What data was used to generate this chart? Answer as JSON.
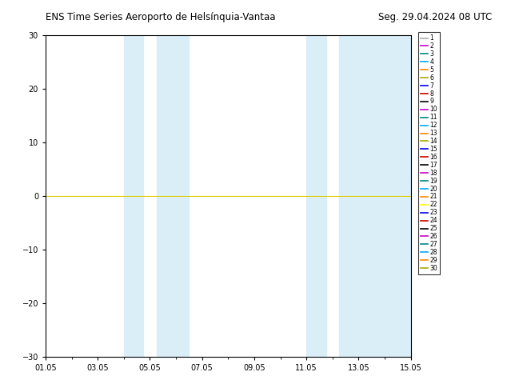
{
  "title_left": "ENS Time Series Aeroporto de Helsínquia-Vantaa",
  "title_right": "Seg. 29.04.2024 08 UTC",
  "xlim": [
    0,
    14
  ],
  "ylim": [
    -30,
    30
  ],
  "yticks": [
    -30,
    -20,
    -10,
    0,
    10,
    20,
    30
  ],
  "xtick_labels": [
    "01.05",
    "03.05",
    "05.05",
    "07.05",
    "09.05",
    "11.05",
    "13.05",
    "15.05"
  ],
  "xtick_positions": [
    0,
    2,
    4,
    6,
    8,
    10,
    12,
    14
  ],
  "shaded_regions": [
    [
      3.0,
      3.75
    ],
    [
      4.25,
      5.5
    ],
    [
      10.0,
      10.75
    ],
    [
      11.25,
      14.0
    ]
  ],
  "shaded_color": "#daeef8",
  "hline_y": 0,
  "hline_color": "#ddcc00",
  "background_color": "#ffffff",
  "plot_bg_color": "#ffffff",
  "legend_labels": [
    "1",
    "2",
    "3",
    "4",
    "5",
    "6",
    "7",
    "8",
    "9",
    "10",
    "11",
    "12",
    "13",
    "14",
    "15",
    "16",
    "17",
    "18",
    "19",
    "20",
    "21",
    "22",
    "23",
    "24",
    "25",
    "26",
    "27",
    "28",
    "29",
    "30"
  ],
  "legend_colors": [
    "#aaaaaa",
    "#cc00cc",
    "#008888",
    "#00aaff",
    "#ff8800",
    "#aaaa00",
    "#0000ff",
    "#cc0000",
    "#000000",
    "#cc00cc",
    "#008888",
    "#00aaff",
    "#ff8800",
    "#aaaa00",
    "#0000ff",
    "#cc0000",
    "#000000",
    "#cc00cc",
    "#008888",
    "#00aaff",
    "#ff8800",
    "#ffff00",
    "#0000ff",
    "#cc0000",
    "#000000",
    "#cc00cc",
    "#008888",
    "#00aaff",
    "#ff8800",
    "#aaaa00"
  ]
}
